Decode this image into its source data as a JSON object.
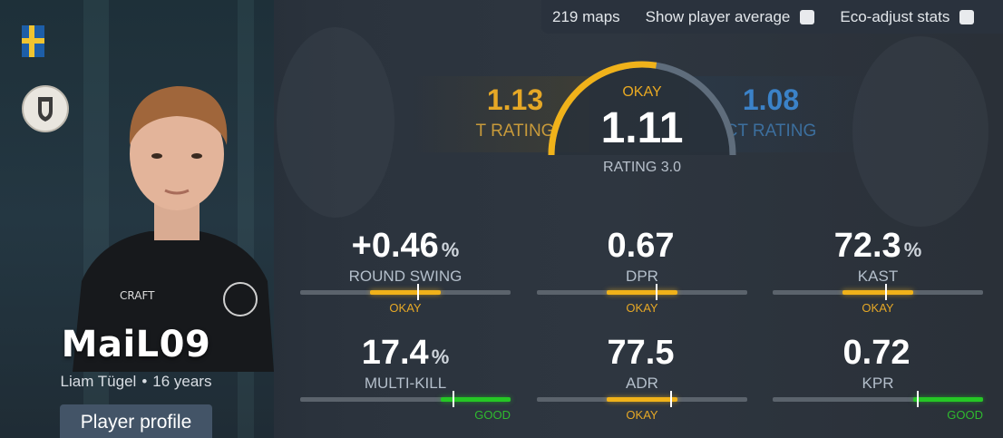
{
  "player": {
    "nickname": "MaiL09",
    "real_name": "Liam Tügel",
    "age": "16 years",
    "separator": "•",
    "profile_button": "Player profile",
    "flag_icon": "sweden-flag-icon",
    "team_logo_icon": "team-logo-icon"
  },
  "toolbar": {
    "maps": "219 maps",
    "show_average_label": "Show player average",
    "eco_adjust_label": "Eco-adjust stats"
  },
  "ratings": {
    "t_value": "1.13",
    "t_label": "T RATING",
    "ct_value": "1.08",
    "ct_label": "CT RATING",
    "main_status": "OKAY",
    "main_value": "1.11",
    "main_label": "RATING 3.0",
    "gauge_fraction": 0.55
  },
  "stats": [
    {
      "value": "+0.46",
      "unit": "%",
      "label": "ROUND SWING",
      "status": "OKAY",
      "fill_start": 0.33,
      "fill_end": 0.67,
      "marker": 0.56
    },
    {
      "value": "0.67",
      "unit": "",
      "label": "DPR",
      "status": "OKAY",
      "fill_start": 0.33,
      "fill_end": 0.67,
      "marker": 0.57
    },
    {
      "value": "72.3",
      "unit": "%",
      "label": "KAST",
      "status": "OKAY",
      "fill_start": 0.33,
      "fill_end": 0.67,
      "marker": 0.54
    },
    {
      "value": "17.4",
      "unit": "%",
      "label": "MULTI-KILL",
      "status": "GOOD",
      "fill_start": 0.67,
      "fill_end": 1.0,
      "marker": 0.73
    },
    {
      "value": "77.5",
      "unit": "",
      "label": "ADR",
      "status": "OKAY",
      "fill_start": 0.33,
      "fill_end": 0.67,
      "marker": 0.64
    },
    {
      "value": "0.72",
      "unit": "",
      "label": "KPR",
      "status": "GOOD",
      "fill_start": 0.67,
      "fill_end": 1.0,
      "marker": 0.69
    }
  ],
  "colors": {
    "okay": "#f0b21a",
    "good": "#25c725",
    "t_side": "#e6a826",
    "ct_side": "#3b82c8"
  }
}
